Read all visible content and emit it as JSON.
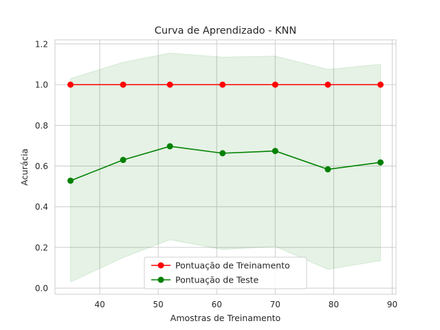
{
  "chart_data": {
    "type": "line",
    "title": "Curva de Aprendizado - KNN",
    "xlabel": "Amostras de Treinamento",
    "ylabel": "Acurácia",
    "xlim": [
      32.35,
      90.65
    ],
    "ylim": [
      -0.03,
      1.22
    ],
    "xticks": [
      40,
      50,
      60,
      70,
      80,
      90
    ],
    "yticks": [
      0.0,
      0.2,
      0.4,
      0.6,
      0.8,
      1.0,
      1.2
    ],
    "grid": true,
    "legend_position": "lower center",
    "x": [
      35,
      44,
      52,
      61,
      70,
      79,
      88
    ],
    "series": [
      {
        "name": "Pontuação de Treinamento",
        "color": "#ff0000",
        "values": [
          1.0,
          1.0,
          1.0,
          1.0,
          1.0,
          1.0,
          1.0
        ]
      },
      {
        "name": "Pontuação de Teste",
        "color": "#008000",
        "values": [
          0.528,
          0.63,
          0.697,
          0.663,
          0.674,
          0.584,
          0.618
        ],
        "band_upper": [
          1.03,
          1.11,
          1.155,
          1.135,
          1.14,
          1.075,
          1.1
        ],
        "band_lower": [
          0.03,
          0.15,
          0.238,
          0.19,
          0.205,
          0.092,
          0.135
        ],
        "band_color": "#008000"
      }
    ]
  }
}
